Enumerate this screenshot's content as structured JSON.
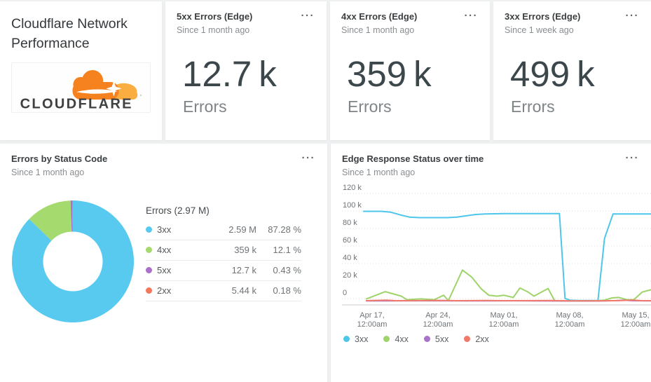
{
  "title_card": {
    "title": "Cloudflare Network Performance",
    "logo_text": "CLOUDFLARE",
    "logo_mark": "’"
  },
  "icons": {
    "more": "···"
  },
  "kpi_cards": [
    {
      "title": "5xx Errors (Edge)",
      "subtitle": "Since 1 month ago",
      "value": "12.7",
      "suffix": "k",
      "label": "Errors"
    },
    {
      "title": "4xx Errors (Edge)",
      "subtitle": "Since 1 month ago",
      "value": "359",
      "suffix": "k",
      "label": "Errors"
    },
    {
      "title": "3xx Errors (Edge)",
      "subtitle": "Since 1 week ago",
      "value": "499",
      "suffix": "k",
      "label": "Errors"
    }
  ],
  "donut_card": {
    "title": "Errors by Status Code",
    "subtitle": "Since 1 month ago",
    "legend_header": "Errors (2.97 M)",
    "rows": [
      {
        "label": "3xx",
        "value": "2.59 M",
        "pct": "87.28 %"
      },
      {
        "label": "4xx",
        "value": "359 k",
        "pct": "12.1 %"
      },
      {
        "label": "5xx",
        "value": "12.7 k",
        "pct": "0.43 %"
      },
      {
        "label": "2xx",
        "value": "5.44 k",
        "pct": "0.18 %"
      }
    ]
  },
  "ts_card": {
    "title": "Edge Response Status over time",
    "subtitle": "Since 1 month ago",
    "legend": [
      "3xx",
      "4xx",
      "5xx",
      "2xx"
    ]
  },
  "chart_data": [
    {
      "type": "pie",
      "donut": true,
      "title": "Errors by Status Code",
      "subtitle": "Since 1 month ago",
      "total_label": "Errors (2.97 M)",
      "labels": [
        "3xx",
        "4xx",
        "5xx",
        "2xx"
      ],
      "values": [
        2590000,
        359000,
        12700,
        5440
      ],
      "values_display": [
        "2.59 M",
        "359 k",
        "12.7 k",
        "5.44 k"
      ],
      "percents": [
        87.28,
        12.1,
        0.43,
        0.18
      ],
      "percents_display": [
        "87.28 %",
        "12.1 %",
        "0.43 %",
        "0.18 %"
      ],
      "colors": [
        "#58CAEF",
        "#A5DA6E",
        "#AB70C8",
        "#F4765B"
      ],
      "start_angle_deg": 0,
      "direction": "clockwise-from-top"
    },
    {
      "type": "line",
      "title": "Edge Response Status over time",
      "subtitle": "Since 1 month ago",
      "ylabel": "",
      "ylim": [
        0,
        120000
      ],
      "y_ticks": [
        "0",
        "20 k",
        "40 k",
        "60 k",
        "80 k",
        "100 k",
        "120 k"
      ],
      "x_ticks": [
        {
          "l1": "Apr 17,",
          "l2": "12:00am",
          "day": 0
        },
        {
          "l1": "Apr 24,",
          "l2": "12:00am",
          "day": 7
        },
        {
          "l1": "May 01,",
          "l2": "12:00am",
          "day": 14
        },
        {
          "l1": "May 08,",
          "l2": "12:00am",
          "day": 21
        },
        {
          "l1": "May 15,",
          "l2": "12:00am",
          "day": 28
        }
      ],
      "grid": "dotted-horizontal",
      "legend_position": "bottom",
      "units_note": "points are [day offset from Apr 17, value in thousands]",
      "series": [
        {
          "name": "3xx",
          "color": "#4EC6EA",
          "points": [
            [
              -0.9,
              100
            ],
            [
              0,
              100
            ],
            [
              1,
              100
            ],
            [
              2,
              99
            ],
            [
              3,
              96
            ],
            [
              4,
              93.5
            ],
            [
              5,
              93
            ],
            [
              7,
              93
            ],
            [
              8,
              93
            ],
            [
              9,
              93.5
            ],
            [
              10,
              95
            ],
            [
              11,
              96.5
            ],
            [
              12,
              97
            ],
            [
              14,
              97.5
            ],
            [
              16,
              97.5
            ],
            [
              18,
              97.5
            ],
            [
              19.9,
              97.5
            ],
            [
              20.5,
              3
            ],
            [
              21,
              1
            ],
            [
              22,
              0.6
            ],
            [
              24,
              0.6
            ],
            [
              24.7,
              70
            ],
            [
              25.6,
              97
            ],
            [
              27,
              97
            ],
            [
              29.6,
              97
            ]
          ]
        },
        {
          "name": "4xx",
          "color": "#9ED46A",
          "points": [
            [
              -0.6,
              2.4
            ],
            [
              1.4,
              10.5
            ],
            [
              3.1,
              5.5
            ],
            [
              3.7,
              1.5
            ],
            [
              5.2,
              2.4
            ],
            [
              6.6,
              1.5
            ],
            [
              7.6,
              6.5
            ],
            [
              8.1,
              0.5
            ],
            [
              9.6,
              34.5
            ],
            [
              10.6,
              26.5
            ],
            [
              11.6,
              13.5
            ],
            [
              12.4,
              6.5
            ],
            [
              13.3,
              5.5
            ],
            [
              14,
              6.5
            ],
            [
              15,
              4
            ],
            [
              15.7,
              14.5
            ],
            [
              16.5,
              10.5
            ],
            [
              17.2,
              5.5
            ],
            [
              18.7,
              14
            ],
            [
              19.4,
              0.5
            ],
            [
              20.2,
              0.2
            ],
            [
              23.6,
              0.2
            ],
            [
              24.7,
              1
            ],
            [
              25.5,
              3.5
            ],
            [
              26.2,
              4
            ],
            [
              27.1,
              1.5
            ],
            [
              27.8,
              1.5
            ],
            [
              28.7,
              10
            ],
            [
              29.6,
              12.5
            ]
          ]
        },
        {
          "name": "5xx",
          "color": "#A873C9",
          "points": [
            [
              -0.6,
              0.2
            ],
            [
              5,
              0.3
            ],
            [
              10,
              0.2
            ],
            [
              15,
              0.3
            ],
            [
              20,
              0.1
            ],
            [
              24,
              0.1
            ],
            [
              26,
              0.5
            ],
            [
              26.8,
              1
            ],
            [
              27.6,
              0.4
            ],
            [
              29.6,
              0.2
            ]
          ]
        },
        {
          "name": "2xx",
          "color": "#F1796A",
          "points": [
            [
              -0.6,
              0.4
            ],
            [
              1.5,
              1
            ],
            [
              2.5,
              0.4
            ],
            [
              5,
              0.5
            ],
            [
              7,
              0.7
            ],
            [
              9,
              0.4
            ],
            [
              12,
              0.6
            ],
            [
              14,
              0.4
            ],
            [
              17,
              0.5
            ],
            [
              19,
              0.6
            ],
            [
              21,
              0.2
            ],
            [
              23.6,
              0.15
            ],
            [
              25,
              0.3
            ],
            [
              26.5,
              0.6
            ],
            [
              27.7,
              1
            ],
            [
              28.6,
              0.5
            ],
            [
              29.6,
              0.4
            ]
          ]
        }
      ]
    }
  ]
}
